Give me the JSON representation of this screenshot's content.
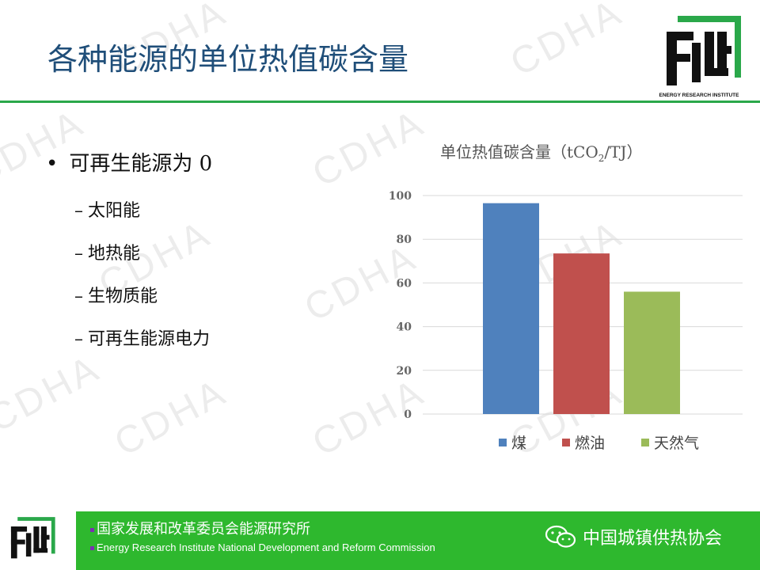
{
  "slide": {
    "title": "各种能源的单位热值碳含量",
    "logo_caption": "ENERGY RESEARCH INSTITUTE",
    "watermark": "CDHA"
  },
  "bullets": {
    "main": "可再生能源为 0",
    "dot": "•",
    "dash": "–",
    "subs": [
      "太阳能",
      "地热能",
      "生物质能",
      "可再生能源电力"
    ]
  },
  "chart_title": {
    "prefix": "单位热值碳含量（tCO",
    "sub": "2",
    "suffix": "/TJ）"
  },
  "chart_data": {
    "type": "bar",
    "title": "单位热值碳含量（tCO2/TJ）",
    "categories": [
      "煤",
      "燃油",
      "天然气"
    ],
    "values": [
      96.5,
      73.5,
      56
    ],
    "colors": [
      "#4f81bd",
      "#c0504d",
      "#9bbb59"
    ],
    "ylim": [
      0,
      100
    ],
    "yticks": [
      "0",
      "20",
      "40",
      "60",
      "80",
      "100"
    ],
    "grid": true,
    "legend": "bottom"
  },
  "footer": {
    "org_cn": "国家发展和改革委员会能源研究所",
    "org_en": "Energy Research Institute National Development and Reform Commission",
    "wechat_label": "中国城镇供热协会",
    "bg_color": "#2eb82e"
  }
}
